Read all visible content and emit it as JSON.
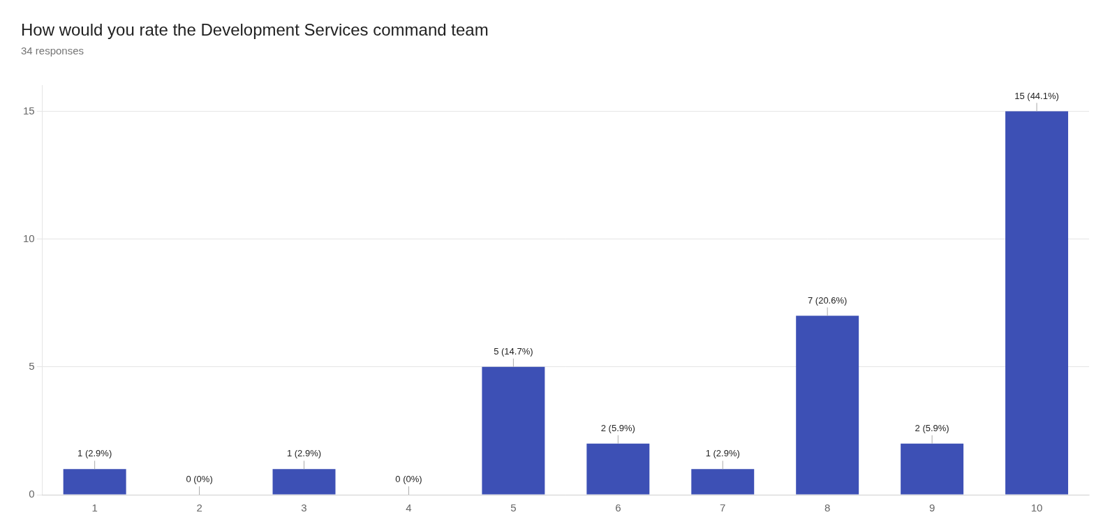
{
  "chart_data": {
    "type": "bar",
    "title": "How would you rate the Development Services command team",
    "subtitle": "34 responses",
    "categories": [
      1,
      2,
      3,
      4,
      5,
      6,
      7,
      8,
      9,
      10
    ],
    "values": [
      1,
      0,
      1,
      0,
      5,
      2,
      1,
      7,
      2,
      15
    ],
    "value_labels": [
      "1 (2.9%)",
      "0 (0%)",
      "1 (2.9%)",
      "0 (0%)",
      "5 (14.7%)",
      "2 (5.9%)",
      "1 (2.9%)",
      "7 (20.6%)",
      "2 (5.9%)",
      "15 (44.1%)"
    ],
    "color": "#3d50b5",
    "ylim": [
      0,
      16
    ],
    "yticks": [
      0,
      5,
      10,
      15
    ],
    "grid": true,
    "data_labels": true
  }
}
